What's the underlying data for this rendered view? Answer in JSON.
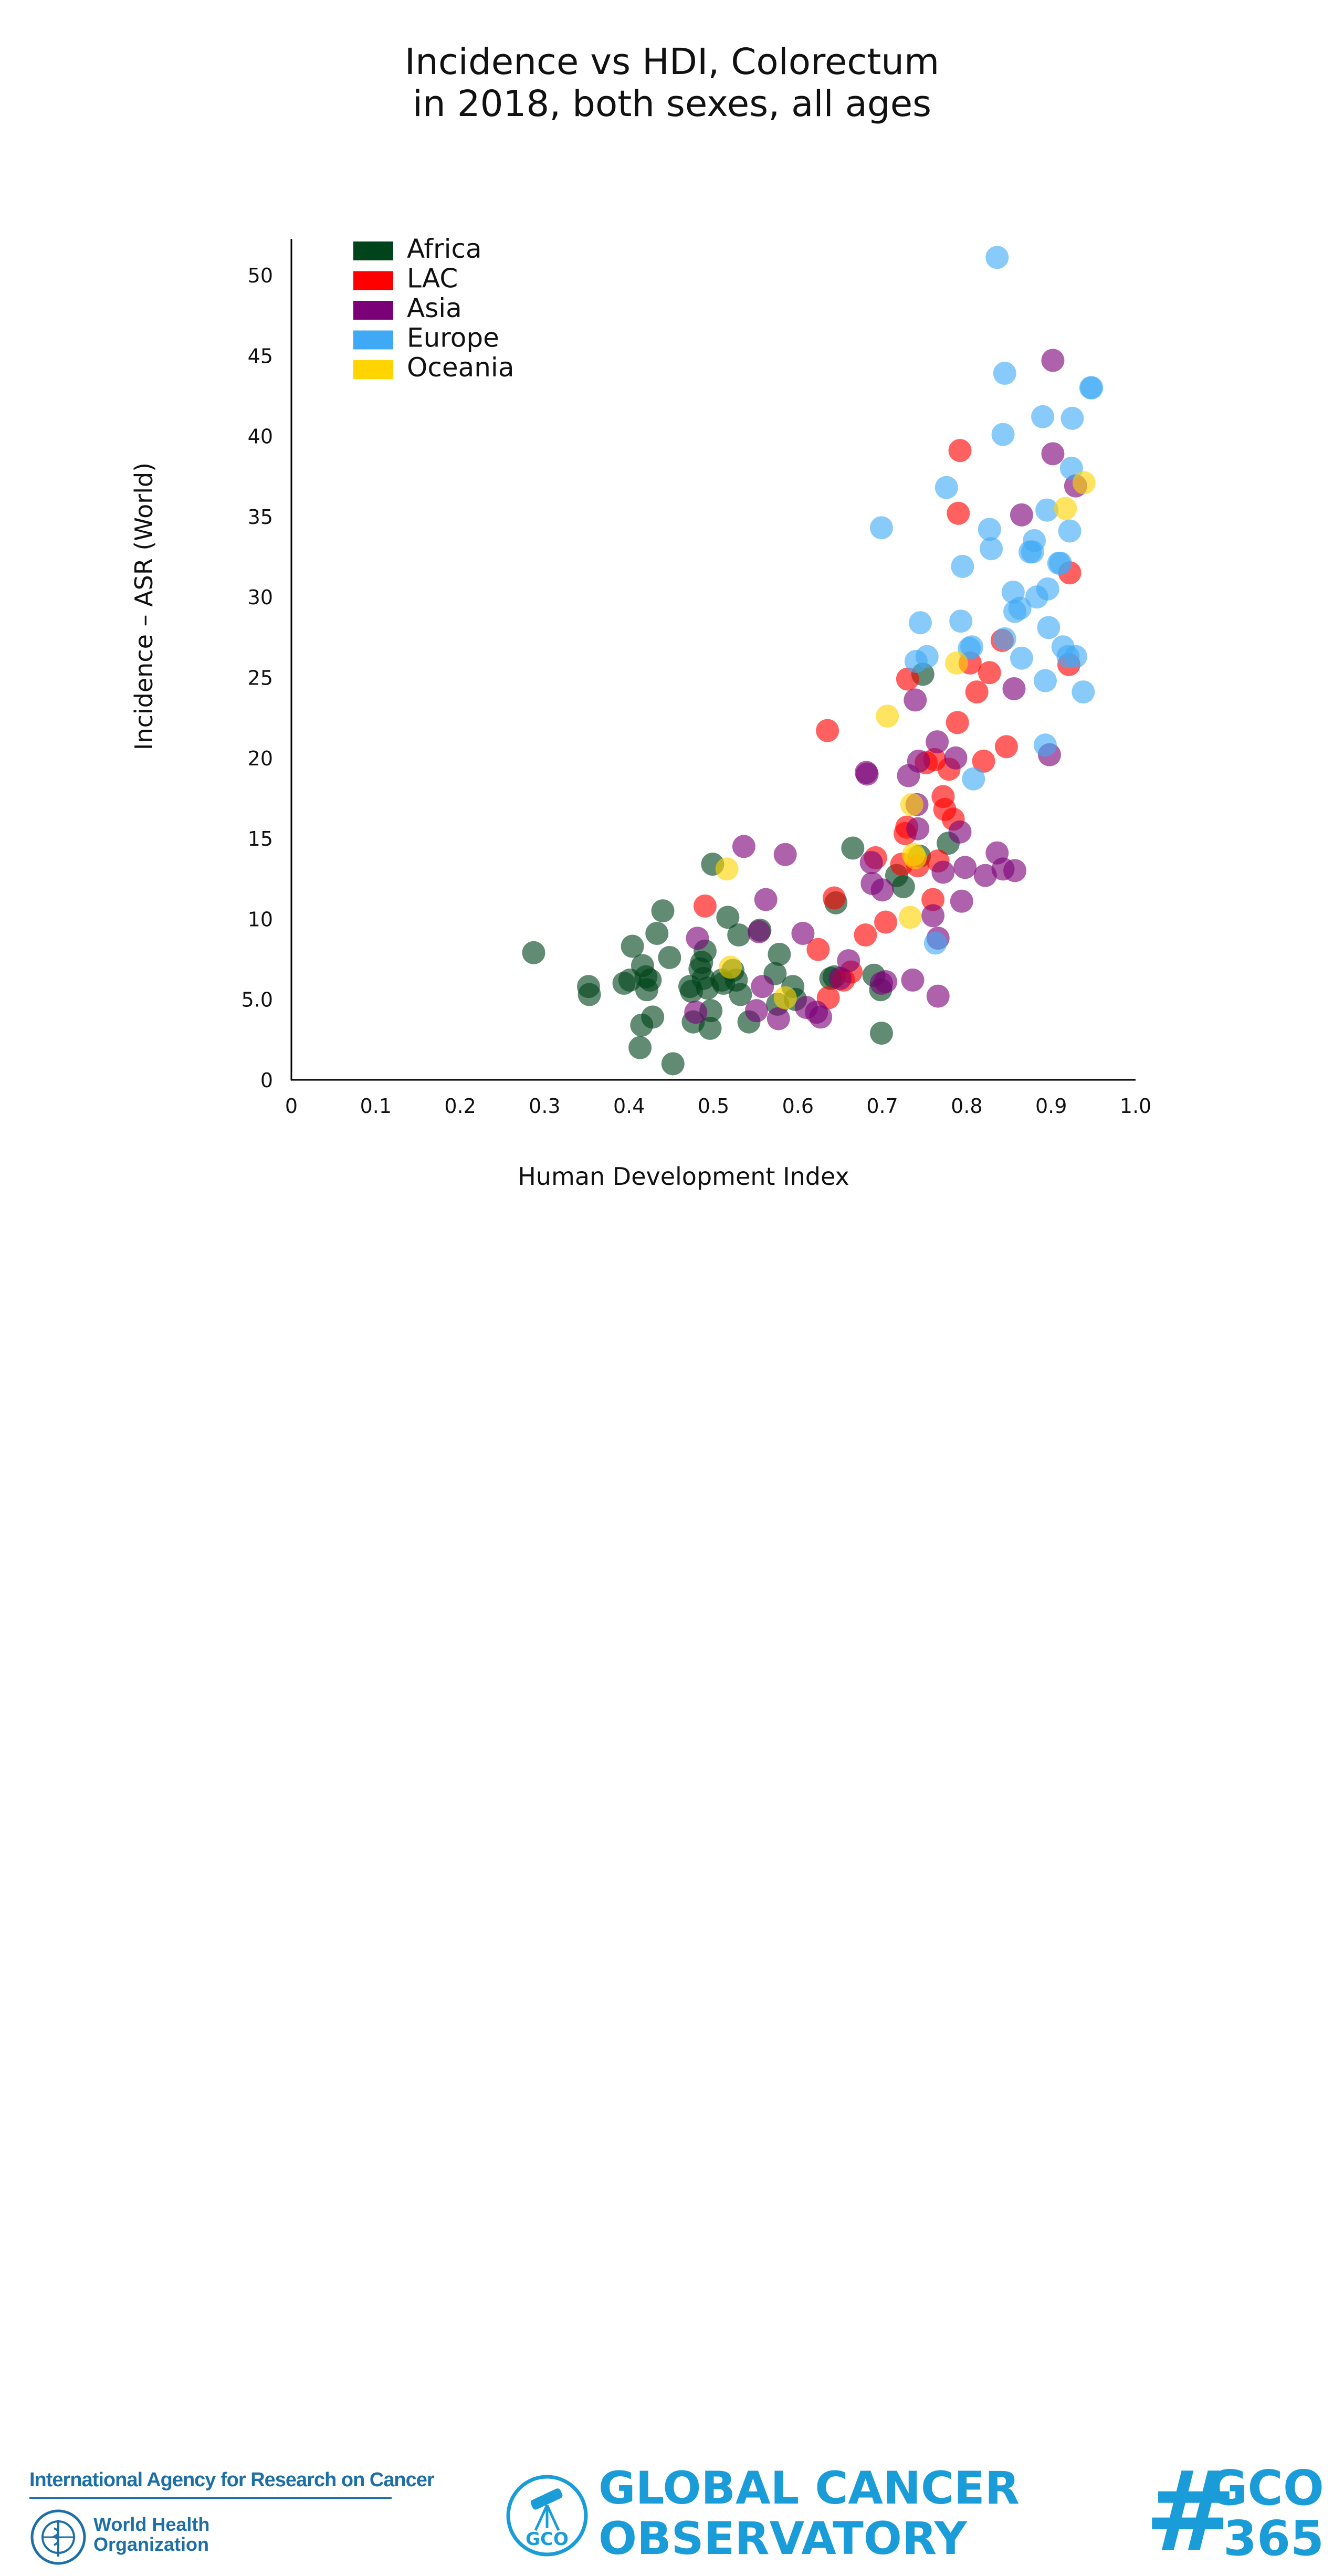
{
  "chart_data": {
    "type": "scatter",
    "title_lines": [
      "Incidence vs HDI, Colorectum",
      "in 2018, both sexes, all ages"
    ],
    "xlabel": "Human Development Index",
    "ylabel": "Incidence – ASR (World)",
    "xlim": [
      0,
      1.0
    ],
    "ylim": [
      0,
      52
    ],
    "x_ticks": [
      {
        "value": 0,
        "label": "0"
      },
      {
        "value": 0.1,
        "label": "0.1"
      },
      {
        "value": 0.2,
        "label": "0.2"
      },
      {
        "value": 0.3,
        "label": "0.3"
      },
      {
        "value": 0.4,
        "label": "0.4"
      },
      {
        "value": 0.5,
        "label": "0.5"
      },
      {
        "value": 0.6,
        "label": "0.6"
      },
      {
        "value": 0.7,
        "label": "0.7"
      },
      {
        "value": 0.8,
        "label": "0.8"
      },
      {
        "value": 0.9,
        "label": "0.9"
      },
      {
        "value": 1.0,
        "label": "1.0"
      }
    ],
    "y_ticks": [
      {
        "value": 0,
        "label": "0"
      },
      {
        "value": 5,
        "label": "5.0"
      },
      {
        "value": 10,
        "label": "10"
      },
      {
        "value": 15,
        "label": "15"
      },
      {
        "value": 20,
        "label": "20"
      },
      {
        "value": 25,
        "label": "25"
      },
      {
        "value": 30,
        "label": "30"
      },
      {
        "value": 35,
        "label": "35"
      },
      {
        "value": 40,
        "label": "40"
      },
      {
        "value": 45,
        "label": "45"
      },
      {
        "value": 50,
        "label": "50"
      }
    ],
    "grid": false,
    "legend_position": "top-left",
    "series": [
      {
        "name": "Africa",
        "color": "#00441b",
        "points": [
          [
            0.287,
            7.9
          ],
          [
            0.352,
            5.8
          ],
          [
            0.353,
            5.3
          ],
          [
            0.394,
            6.0
          ],
          [
            0.401,
            6.2
          ],
          [
            0.404,
            8.3
          ],
          [
            0.413,
            2.0
          ],
          [
            0.415,
            3.4
          ],
          [
            0.416,
            7.1
          ],
          [
            0.42,
            6.4
          ],
          [
            0.421,
            5.6
          ],
          [
            0.425,
            6.2
          ],
          [
            0.428,
            3.9
          ],
          [
            0.433,
            9.1
          ],
          [
            0.44,
            10.5
          ],
          [
            0.448,
            7.6
          ],
          [
            0.452,
            1.0
          ],
          [
            0.472,
            5.8
          ],
          [
            0.474,
            5.5
          ],
          [
            0.476,
            3.6
          ],
          [
            0.484,
            6.9
          ],
          [
            0.486,
            7.3
          ],
          [
            0.488,
            6.3
          ],
          [
            0.49,
            8.0
          ],
          [
            0.493,
            5.7
          ],
          [
            0.496,
            3.2
          ],
          [
            0.497,
            4.3
          ],
          [
            0.499,
            13.4
          ],
          [
            0.51,
            6.2
          ],
          [
            0.512,
            6.0
          ],
          [
            0.517,
            10.1
          ],
          [
            0.523,
            6.8
          ],
          [
            0.527,
            6.2
          ],
          [
            0.53,
            9.0
          ],
          [
            0.532,
            5.3
          ],
          [
            0.542,
            3.6
          ],
          [
            0.555,
            9.3
          ],
          [
            0.573,
            6.6
          ],
          [
            0.576,
            4.7
          ],
          [
            0.578,
            7.8
          ],
          [
            0.594,
            5.8
          ],
          [
            0.597,
            5.0
          ],
          [
            0.639,
            6.3
          ],
          [
            0.643,
            6.4
          ],
          [
            0.645,
            11.0
          ],
          [
            0.665,
            14.4
          ],
          [
            0.69,
            6.5
          ],
          [
            0.698,
            5.6
          ],
          [
            0.699,
            2.9
          ],
          [
            0.717,
            12.7
          ],
          [
            0.725,
            12.0
          ],
          [
            0.744,
            13.9
          ],
          [
            0.748,
            25.2
          ],
          [
            0.778,
            14.7
          ]
        ]
      },
      {
        "name": "LAC",
        "color": "#ff0000",
        "points": [
          [
            0.49,
            10.8
          ],
          [
            0.624,
            8.1
          ],
          [
            0.635,
            21.7
          ],
          [
            0.636,
            5.1
          ],
          [
            0.643,
            11.3
          ],
          [
            0.654,
            6.2
          ],
          [
            0.663,
            6.7
          ],
          [
            0.68,
            9.0
          ],
          [
            0.692,
            13.8
          ],
          [
            0.704,
            9.8
          ],
          [
            0.723,
            13.4
          ],
          [
            0.727,
            15.3
          ],
          [
            0.729,
            15.7
          ],
          [
            0.73,
            24.9
          ],
          [
            0.742,
            13.3
          ],
          [
            0.752,
            19.7
          ],
          [
            0.76,
            11.2
          ],
          [
            0.762,
            19.9
          ],
          [
            0.766,
            13.6
          ],
          [
            0.772,
            17.6
          ],
          [
            0.774,
            16.8
          ],
          [
            0.779,
            19.3
          ],
          [
            0.784,
            16.2
          ],
          [
            0.789,
            22.2
          ],
          [
            0.792,
            39.1
          ],
          [
            0.79,
            35.2
          ],
          [
            0.804,
            25.9
          ],
          [
            0.812,
            24.1
          ],
          [
            0.82,
            19.8
          ],
          [
            0.827,
            25.3
          ],
          [
            0.842,
            27.3
          ],
          [
            0.847,
            20.7
          ],
          [
            0.921,
            25.8
          ],
          [
            0.922,
            31.5
          ]
        ]
      },
      {
        "name": "Asia",
        "color": "#7a0177",
        "points": [
          [
            0.481,
            8.8
          ],
          [
            0.479,
            4.2
          ],
          [
            0.536,
            14.5
          ],
          [
            0.554,
            9.2
          ],
          [
            0.558,
            5.8
          ],
          [
            0.562,
            11.2
          ],
          [
            0.551,
            4.3
          ],
          [
            0.585,
            14.0
          ],
          [
            0.577,
            3.8
          ],
          [
            0.606,
            9.1
          ],
          [
            0.61,
            4.5
          ],
          [
            0.622,
            4.2
          ],
          [
            0.627,
            3.9
          ],
          [
            0.65,
            6.3
          ],
          [
            0.66,
            7.4
          ],
          [
            0.681,
            19.1
          ],
          [
            0.682,
            19.0
          ],
          [
            0.687,
            13.5
          ],
          [
            0.688,
            12.2
          ],
          [
            0.699,
            6.0
          ],
          [
            0.7,
            11.8
          ],
          [
            0.704,
            6.1
          ],
          [
            0.731,
            18.9
          ],
          [
            0.736,
            6.2
          ],
          [
            0.739,
            23.6
          ],
          [
            0.741,
            17.1
          ],
          [
            0.742,
            15.6
          ],
          [
            0.743,
            19.8
          ],
          [
            0.76,
            10.2
          ],
          [
            0.765,
            21.0
          ],
          [
            0.766,
            8.8
          ],
          [
            0.766,
            5.2
          ],
          [
            0.772,
            12.9
          ],
          [
            0.787,
            20.0
          ],
          [
            0.792,
            15.4
          ],
          [
            0.794,
            11.1
          ],
          [
            0.798,
            13.2
          ],
          [
            0.822,
            12.7
          ],
          [
            0.836,
            14.1
          ],
          [
            0.843,
            13.1
          ],
          [
            0.857,
            13.0
          ],
          [
            0.856,
            24.3
          ],
          [
            0.865,
            35.1
          ],
          [
            0.898,
            20.2
          ],
          [
            0.902,
            44.7
          ],
          [
            0.902,
            38.9
          ],
          [
            0.929,
            36.9
          ]
        ]
      },
      {
        "name": "Europe",
        "color": "#3fa9f5",
        "points": [
          [
            0.699,
            34.3
          ],
          [
            0.74,
            26.0
          ],
          [
            0.745,
            28.4
          ],
          [
            0.753,
            26.3
          ],
          [
            0.763,
            8.5
          ],
          [
            0.776,
            36.8
          ],
          [
            0.793,
            28.5
          ],
          [
            0.795,
            31.9
          ],
          [
            0.803,
            26.8
          ],
          [
            0.806,
            26.9
          ],
          [
            0.808,
            18.7
          ],
          [
            0.827,
            34.2
          ],
          [
            0.829,
            33.0
          ],
          [
            0.836,
            51.1
          ],
          [
            0.843,
            40.1
          ],
          [
            0.845,
            43.9
          ],
          [
            0.845,
            27.4
          ],
          [
            0.855,
            30.3
          ],
          [
            0.857,
            29.1
          ],
          [
            0.863,
            29.3
          ],
          [
            0.865,
            26.2
          ],
          [
            0.875,
            32.8
          ],
          [
            0.878,
            32.8
          ],
          [
            0.88,
            33.5
          ],
          [
            0.883,
            30.0
          ],
          [
            0.89,
            41.2
          ],
          [
            0.893,
            24.8
          ],
          [
            0.893,
            20.8
          ],
          [
            0.895,
            35.4
          ],
          [
            0.896,
            30.5
          ],
          [
            0.897,
            28.1
          ],
          [
            0.909,
            32.1
          ],
          [
            0.911,
            32.1
          ],
          [
            0.914,
            26.9
          ],
          [
            0.92,
            26.3
          ],
          [
            0.922,
            34.1
          ],
          [
            0.924,
            38.0
          ],
          [
            0.925,
            41.1
          ],
          [
            0.929,
            26.3
          ],
          [
            0.938,
            24.1
          ],
          [
            0.947,
            43.0
          ],
          [
            0.948,
            43.0
          ]
        ]
      },
      {
        "name": "Oceania",
        "color": "#ffd400",
        "points": [
          [
            0.516,
            13.1
          ],
          [
            0.52,
            7.0
          ],
          [
            0.585,
            5.1
          ],
          [
            0.706,
            22.6
          ],
          [
            0.733,
            10.1
          ],
          [
            0.735,
            17.1
          ],
          [
            0.737,
            14.0
          ],
          [
            0.739,
            13.8
          ],
          [
            0.788,
            25.9
          ],
          [
            0.917,
            35.5
          ],
          [
            0.939,
            37.1
          ]
        ]
      }
    ]
  },
  "footer": {
    "iarc": "International Agency for Research on Cancer",
    "who_line1": "World Health",
    "who_line2": "Organization",
    "gco_badge": "GCO",
    "gco_line1": "GLOBAL CANCER",
    "gco_line2": "OBSERVATORY",
    "hash": "#",
    "hash_line1": "GCO",
    "hash_line2": "365",
    "brand_color": "#1a9cd8"
  }
}
